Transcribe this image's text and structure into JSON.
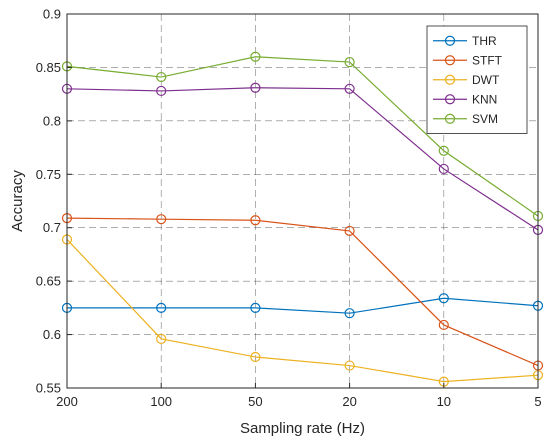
{
  "chart_data": {
    "type": "line",
    "xlabel": "Sampling rate (Hz)",
    "ylabel": "Accuracy",
    "categories": [
      "200",
      "100",
      "50",
      "20",
      "10",
      "5"
    ],
    "ylim": [
      0.55,
      0.9
    ],
    "yticks": [
      "0.55",
      "0.6",
      "0.65",
      "0.7",
      "0.75",
      "0.8",
      "0.85",
      "0.9"
    ],
    "grid": true,
    "legend_position": "top-right",
    "series": [
      {
        "name": "THR",
        "color": "#0072BD",
        "values": [
          0.625,
          0.625,
          0.625,
          0.62,
          0.634,
          0.627
        ]
      },
      {
        "name": "STFT",
        "color": "#D95319",
        "values": [
          0.709,
          0.708,
          0.707,
          0.697,
          0.609,
          0.571
        ]
      },
      {
        "name": "DWT",
        "color": "#EDB120",
        "values": [
          0.689,
          0.596,
          0.579,
          0.571,
          0.556,
          0.562
        ]
      },
      {
        "name": "KNN",
        "color": "#7E2F8E",
        "values": [
          0.83,
          0.828,
          0.831,
          0.83,
          0.755,
          0.698
        ]
      },
      {
        "name": "SVM",
        "color": "#77AC30",
        "values": [
          0.851,
          0.841,
          0.86,
          0.855,
          0.772,
          0.711
        ]
      }
    ]
  }
}
